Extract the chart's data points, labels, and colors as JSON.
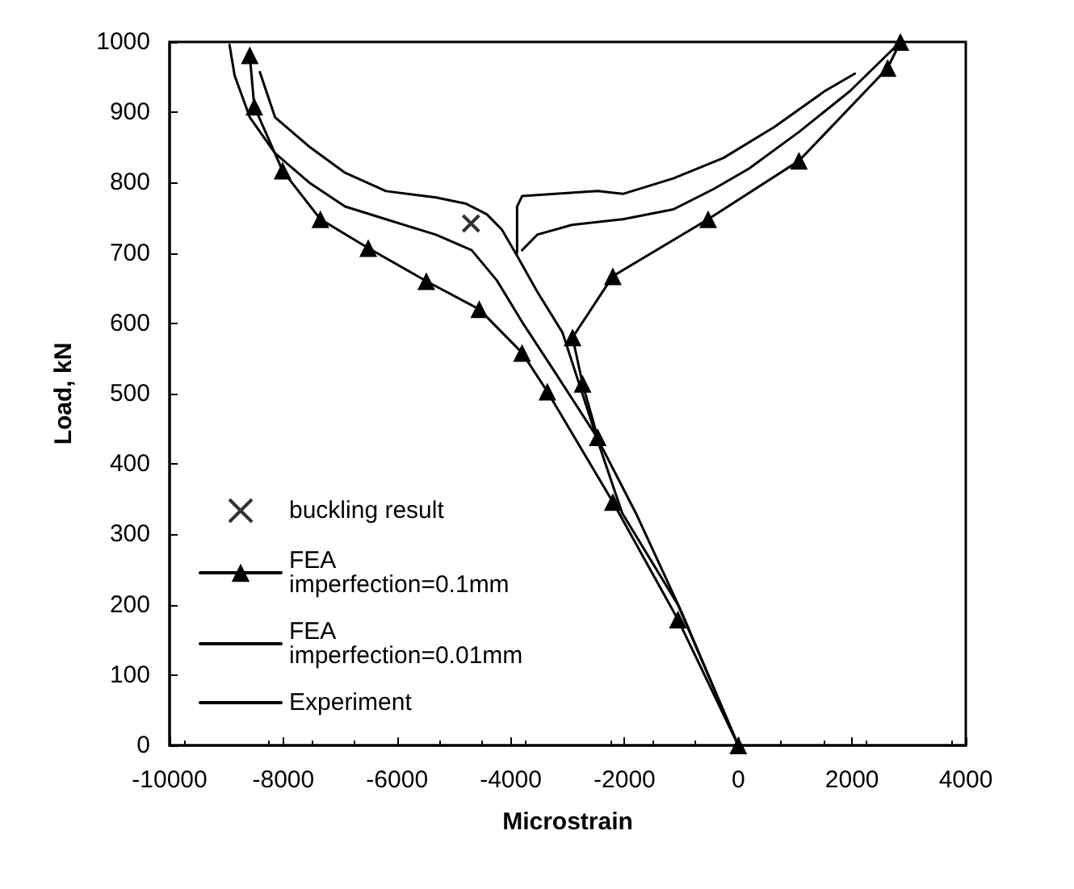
{
  "chart_data": {
    "type": "line",
    "xlabel": "Microstrain",
    "ylabel": "Load, kN",
    "xlim": [
      -10000,
      4000
    ],
    "xticks": [
      -10000,
      -8000,
      -6000,
      -4000,
      -2000,
      0,
      2000,
      4000
    ],
    "ylim": [
      0,
      1000
    ],
    "yticks": [
      0,
      100,
      200,
      300,
      400,
      500,
      600,
      700,
      800,
      900,
      1000
    ],
    "grid": false,
    "legend": "bottom left",
    "line_style": "solid",
    "series": [
      {
        "name": "buckling result",
        "type": "scatter",
        "marker": "cross",
        "color": "#000000",
        "x": [
          -4700
        ],
        "values": [
          742
        ]
      },
      {
        "name": "FEA imperfection=0.1mm",
        "marker": "triangle",
        "color": "#000000",
        "x": [
          -8590,
          -8510,
          -8013,
          -7348,
          -6507,
          -5486,
          -4555,
          -3802,
          -3358,
          -2206,
          -1062,
          0,
          null,
          -2472,
          -2738,
          -2914,
          -2206,
          -530,
          1066,
          2626,
          2850
        ],
        "values": [
          981,
          908,
          817,
          748,
          707,
          660,
          620,
          558,
          503,
          346,
          179,
          0,
          null,
          438,
          514,
          580,
          667,
          748,
          831,
          963,
          1000
        ]
      },
      {
        "name": "FEA imperfection=0.01mm",
        "marker": "none",
        "color": "#000000",
        "x": [
          -8946,
          -8856,
          -8590,
          -8146,
          -7526,
          -6914,
          -6196,
          -5318,
          -4688,
          -4245,
          -3802,
          -3300,
          -2500,
          -1800,
          -1000,
          0,
          null,
          -3802,
          -3536,
          -2924,
          -2028,
          -1142,
          -432,
          188,
          1066,
          1962,
          2848
        ],
        "values": [
          996,
          952,
          893,
          842,
          799,
          766,
          748,
          726,
          704,
          661,
          602,
          540,
          440,
          330,
          190,
          0,
          null,
          704,
          726,
          740,
          748,
          762,
          791,
          820,
          872,
          930,
          1000
        ]
      },
      {
        "name": "Experiment",
        "marker": "none",
        "color": "#000000",
        "x": [
          -8412,
          -8146,
          -7526,
          -6914,
          -6196,
          -5318,
          -4786,
          -4422,
          -4156,
          -3890,
          -3536,
          -3092,
          -2472,
          -2040,
          -1062,
          0,
          null,
          -3890,
          -3890,
          -3800,
          -2472,
          -2028,
          -1142,
          -264,
          632,
          1518,
          2050
        ],
        "values": [
          957,
          893,
          850,
          814,
          788,
          779,
          770,
          755,
          733,
          696,
          645,
          587,
          433,
          330,
          200,
          0,
          null,
          700,
          766,
          781,
          788,
          784,
          806,
          835,
          879,
          930,
          955
        ]
      }
    ]
  }
}
